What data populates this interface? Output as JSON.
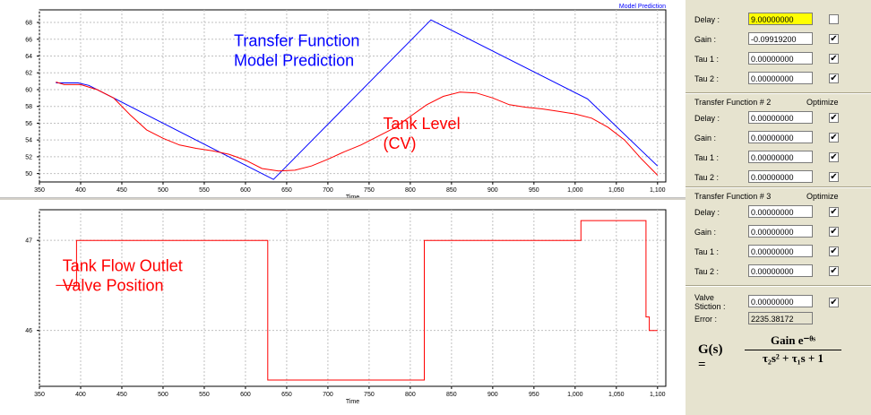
{
  "charts": [
    {
      "id": "top",
      "title": "Model Prediction",
      "xlabel": "Time",
      "xlim": [
        350,
        1110
      ],
      "ylim": [
        49,
        69.5
      ],
      "xticks": [
        "350",
        "400",
        "450",
        "500",
        "550",
        "600",
        "650",
        "700",
        "750",
        "800",
        "850",
        "900",
        "950",
        "1,000",
        "1,050",
        "1,100"
      ],
      "yticks": [
        "50",
        "52",
        "54",
        "56",
        "58",
        "60",
        "62",
        "64",
        "66",
        "68"
      ],
      "annotations": [
        {
          "lines": [
            "Transfer Function",
            "Model Prediction"
          ],
          "color": "#0000ff",
          "at": [
            586,
            65.2
          ]
        },
        {
          "lines": [
            "Tank Level",
            "(CV)"
          ],
          "color": "#ff0000",
          "at": [
            767,
            55.3
          ]
        }
      ]
    },
    {
      "id": "bottom",
      "xlabel": "Time",
      "xlim": [
        350,
        1110
      ],
      "ylim": [
        45.38,
        47.34
      ],
      "xticks": [
        "350",
        "400",
        "450",
        "500",
        "550",
        "600",
        "650",
        "700",
        "750",
        "800",
        "850",
        "900",
        "950",
        "1,000",
        "1,050",
        "1,100"
      ],
      "yticks": [
        "47",
        "46"
      ],
      "annotations": [
        {
          "lines": [
            "Tank Flow Outlet",
            "Valve Position"
          ],
          "color": "#ff0000",
          "at": [
            378,
            46.66
          ]
        }
      ]
    }
  ],
  "chart_data": [
    {
      "type": "line",
      "xlabel": "Time",
      "ylabel": "",
      "xlim": [
        350,
        1110
      ],
      "ylim": [
        49,
        69.5
      ],
      "grid": true,
      "series": [
        {
          "name": "Model Prediction",
          "color": "#0000ff",
          "x": [
            370,
            397,
            410,
            634,
            825,
            1015,
            1100
          ],
          "y": [
            60.8,
            60.8,
            60.5,
            49.3,
            68.3,
            58.9,
            50.9
          ]
        },
        {
          "name": "Tank Level (CV)",
          "color": "#ff0000",
          "x": [
            370,
            380,
            400,
            420,
            440,
            460,
            480,
            500,
            520,
            540,
            560,
            580,
            600,
            620,
            640,
            660,
            680,
            700,
            720,
            740,
            760,
            780,
            800,
            820,
            840,
            860,
            880,
            900,
            920,
            940,
            960,
            980,
            1000,
            1020,
            1040,
            1060,
            1080,
            1100
          ],
          "y": [
            60.9,
            60.6,
            60.6,
            60.0,
            59.0,
            57.0,
            55.2,
            54.2,
            53.4,
            53.0,
            52.7,
            52.3,
            51.6,
            50.6,
            50.3,
            50.4,
            50.9,
            51.7,
            52.6,
            53.4,
            54.4,
            55.4,
            56.8,
            58.2,
            59.2,
            59.7,
            59.6,
            59.0,
            58.2,
            57.9,
            57.7,
            57.4,
            57.1,
            56.6,
            55.5,
            54.0,
            51.8,
            49.8
          ]
        }
      ]
    },
    {
      "type": "line",
      "xlabel": "Time",
      "ylabel": "",
      "xlim": [
        350,
        1110
      ],
      "ylim": [
        45.38,
        47.34
      ],
      "grid": true,
      "series": [
        {
          "name": "Tank Flow Outlet Valve Position",
          "color": "#ff0000",
          "x": [
            370,
            395,
            395,
            627,
            627,
            817,
            817,
            1007,
            1007,
            1086,
            1086,
            1090,
            1090,
            1100
          ],
          "y": [
            46.5,
            46.5,
            47.0,
            47.0,
            45.45,
            45.45,
            47.0,
            47.0,
            47.22,
            47.22,
            46.15,
            46.15,
            46.0,
            46.0
          ]
        }
      ]
    }
  ],
  "panel": {
    "tf1_rows": [
      {
        "label": "Delay :",
        "value": "9.00000000",
        "highlight": true,
        "checked": ""
      },
      {
        "label": "Gain  :",
        "value": "-0.09919200",
        "checked": "✔"
      },
      {
        "label": "Tau 1 :",
        "value": "0.00000000",
        "checked": "✔"
      },
      {
        "label": "Tau 2 :",
        "value": "0.00000000",
        "checked": "✔"
      }
    ],
    "tf2_header": "Transfer Function # 2",
    "tf2_optimize": "Optimize",
    "tf2_rows": [
      {
        "label": "Delay :",
        "value": "0.00000000",
        "checked": "✔"
      },
      {
        "label": "Gain  :",
        "value": "0.00000000",
        "checked": "✔"
      },
      {
        "label": "Tau 1 :",
        "value": "0.00000000",
        "checked": "✔"
      },
      {
        "label": "Tau 2 :",
        "value": "0.00000000",
        "checked": "✔"
      }
    ],
    "tf3_header": "Transfer Function # 3",
    "tf3_optimize": "Optimize",
    "tf3_rows": [
      {
        "label": "Delay :",
        "value": "0.00000000",
        "checked": "✔"
      },
      {
        "label": "Gain  :",
        "value": "0.00000000",
        "checked": "✔"
      },
      {
        "label": "Tau 1 :",
        "value": "0.00000000",
        "checked": "✔"
      },
      {
        "label": "Tau 2 :",
        "value": "0.00000000",
        "checked": "✔"
      }
    ],
    "stiction_label_1": "Valve",
    "stiction_label_2": "Stiction :",
    "stiction_value": "0.00000000",
    "stiction_checked": "✔",
    "error_label": "Error :",
    "error_value": "2235.38172",
    "formula_lhs": "G(s) =",
    "formula_num": "Gain e⁻ᶿˢ",
    "formula_den": "τ₂s² + τ₁s + 1"
  }
}
